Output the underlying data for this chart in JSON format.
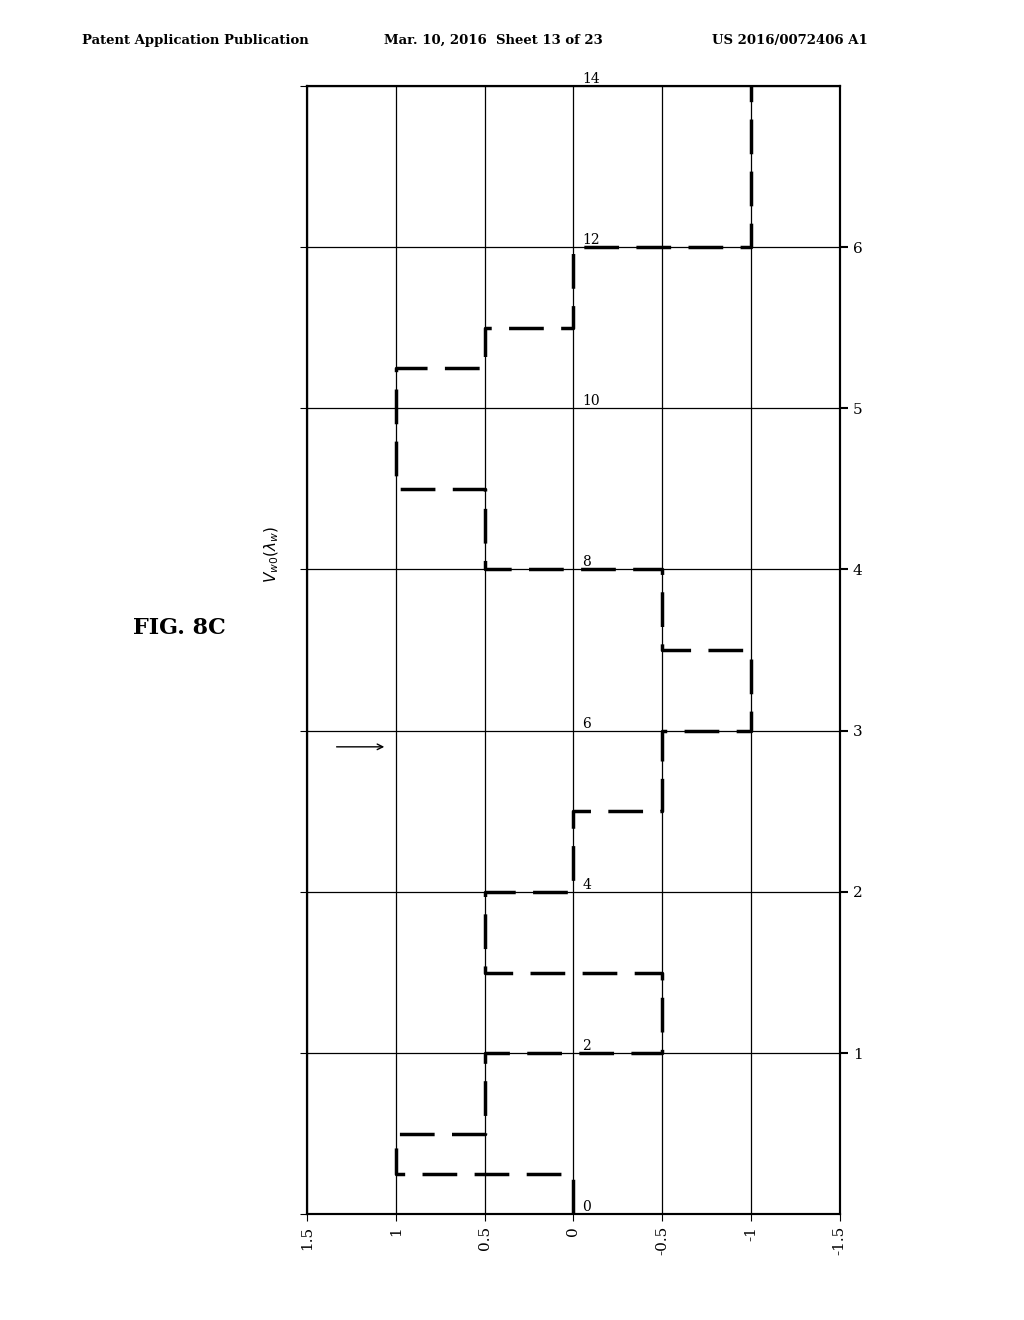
{
  "header_left": "Patent Application Publication",
  "header_mid": "Mar. 10, 2016  Sheet 13 of 23",
  "header_right": "US 2016/0072406 A1",
  "fig_label": "FIG. 8C",
  "curve_label": "V_w0(λw)",
  "xlim": [
    1.5,
    -1.5
  ],
  "ylim": [
    0,
    14
  ],
  "xticks": [
    1.5,
    1.0,
    0.5,
    0.0,
    -0.5,
    -1.0,
    -1.5
  ],
  "xticklabels": [
    "1.5",
    "1",
    "0.5",
    "0",
    "-0.5",
    "-1",
    "-1.5"
  ],
  "yticks": [
    0,
    2,
    4,
    6,
    8,
    10,
    12,
    14
  ],
  "right_ytick_positions": [
    2,
    4,
    6,
    8,
    10,
    12
  ],
  "right_yticklabels": [
    "1",
    "2",
    "3",
    "4",
    "5",
    "6"
  ],
  "inner_ytick_positions": [
    0,
    2,
    4,
    6,
    8,
    10,
    12,
    14
  ],
  "inner_ytick_labels": [
    "0",
    "2",
    "4",
    "6",
    "8",
    "10",
    "12",
    "14"
  ],
  "waveform_x": [
    0.0,
    0.0,
    1.0,
    1.0,
    0.5,
    0.5,
    -0.5,
    -0.5,
    0.5,
    0.5,
    0.0,
    0.0,
    -0.5,
    -0.5,
    -1.0,
    -1.0,
    -0.5,
    -0.5,
    0.5,
    0.5,
    1.0,
    1.0,
    0.5,
    0.5,
    0.0,
    0.0,
    -1.0,
    -1.0
  ],
  "waveform_y": [
    0.0,
    0.5,
    0.5,
    1.0,
    1.0,
    2.0,
    2.0,
    3.0,
    3.0,
    4.0,
    4.0,
    5.0,
    5.0,
    6.0,
    6.0,
    7.0,
    7.0,
    8.0,
    8.0,
    9.0,
    9.0,
    10.5,
    10.5,
    11.0,
    11.0,
    12.0,
    12.0,
    14.0
  ],
  "background_color": "#ffffff",
  "line_color": "#000000",
  "figsize": [
    10.24,
    13.2
  ],
  "dpi": 100
}
